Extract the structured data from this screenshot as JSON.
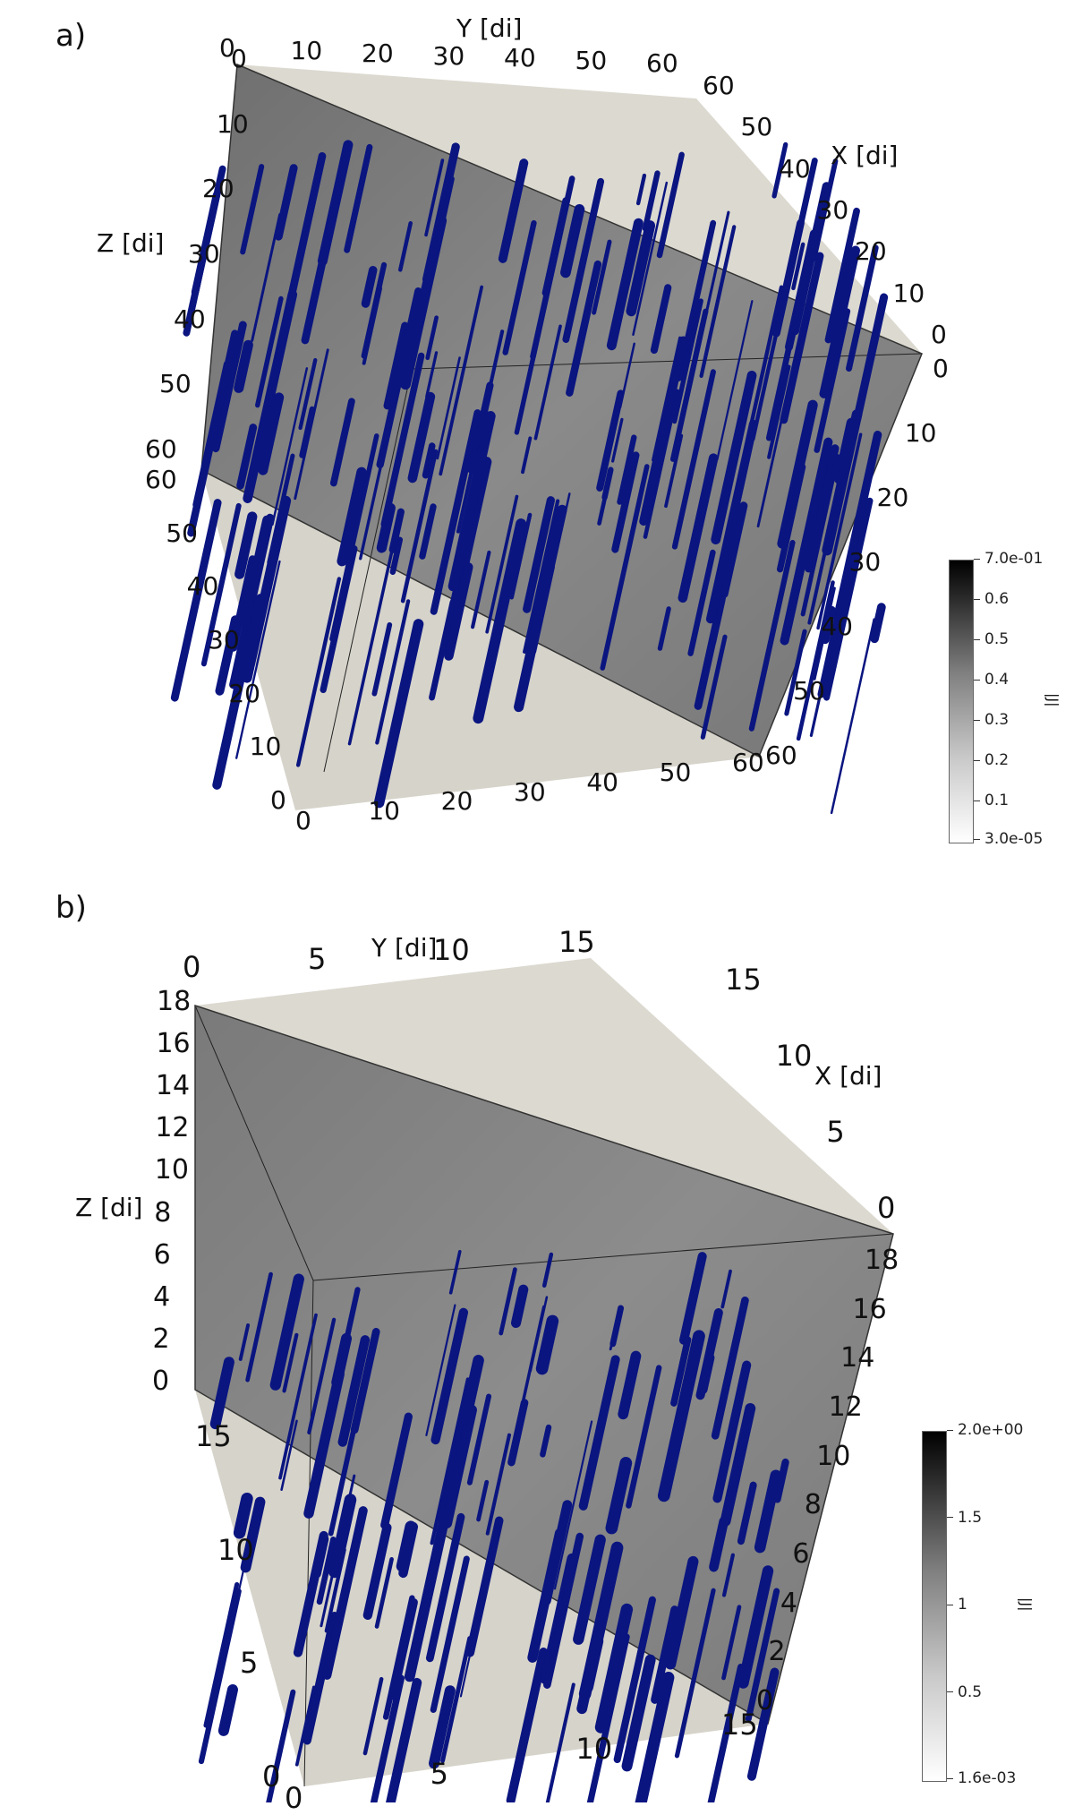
{
  "panels": [
    {
      "label": "a)",
      "axis_titles": {
        "x": "X [di]",
        "y": "Y [di]",
        "z": "Z [di]"
      },
      "y_top_ticks": [
        "0",
        "10",
        "20",
        "30",
        "40",
        "50",
        "60"
      ],
      "x_top_ticks": [
        "60",
        "50",
        "40",
        "30",
        "20",
        "10",
        "0"
      ],
      "z_left_ticks": [
        "0",
        "10",
        "20",
        "30",
        "40",
        "50",
        "60"
      ],
      "z_right_ticks": [
        "0",
        "10",
        "20",
        "30",
        "40",
        "50",
        "60"
      ],
      "x_bottom_left_ticks": [
        "60",
        "50",
        "40",
        "30",
        "20",
        "10",
        "0"
      ],
      "y_bottom_ticks": [
        "0",
        "10",
        "20",
        "30",
        "40",
        "50",
        "60"
      ],
      "colorbar": {
        "title": "|J|",
        "max": "7.0e-01",
        "min": "3.0e-05",
        "ticks": [
          "0.6",
          "0.5",
          "0.4",
          "0.3",
          "0.2",
          "0.1"
        ]
      }
    },
    {
      "label": "b)",
      "axis_titles": {
        "x": "X [di]",
        "y": "Y [di]",
        "z": "Z [di]"
      },
      "y_top_ticks": [
        "0",
        "5",
        "10",
        "15"
      ],
      "x_top_ticks": [
        "15",
        "10",
        "5",
        "0"
      ],
      "z_left_ticks": [
        "18",
        "16",
        "14",
        "12",
        "10",
        "8",
        "6",
        "4",
        "2",
        "0"
      ],
      "z_right_ticks": [
        "18",
        "16",
        "14",
        "12",
        "10",
        "8",
        "6",
        "4",
        "2",
        "0"
      ],
      "x_bottom_left_ticks": [
        "15",
        "10",
        "5",
        "0"
      ],
      "y_bottom_ticks": [
        "0",
        "5",
        "10",
        "15"
      ],
      "colorbar": {
        "title": "|J|",
        "max": "2.0e+00",
        "min": "1.6e-03",
        "ticks": [
          "1.5",
          "1",
          "0.5"
        ]
      }
    }
  ],
  "colors": {
    "structures": "#0a1580",
    "top_face": "#dcd9d0",
    "side_face": "#808080",
    "bottom_face": "#d6d3ca"
  }
}
